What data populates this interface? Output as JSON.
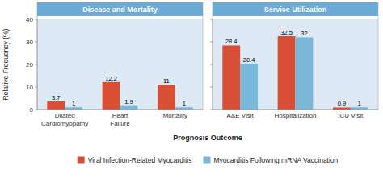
{
  "chart_data": [
    {
      "type": "bar",
      "title": "Disease and Mortality",
      "x_label": "Prognosis Outcome",
      "y_label": "Relative Frequency (%)",
      "categories": [
        "Dilated\nCardiomyopathy",
        "Heart\nFailure",
        "Mortality"
      ],
      "series": [
        {
          "name": "Viral Infection-Related Myocarditis",
          "color": "#d94f35",
          "values": [
            3.7,
            12.2,
            11
          ]
        },
        {
          "name": "Myocarditis Following mRNA Vaccination",
          "color": "#7ab8d9",
          "values": [
            1,
            1.9,
            1
          ]
        }
      ],
      "ylim": [
        0,
        40
      ],
      "yticks": [
        0,
        10,
        20,
        30,
        40
      ],
      "grid": false,
      "data_labels": true,
      "legend": "bottom"
    },
    {
      "type": "bar",
      "title": "Service Utilization",
      "categories": [
        "A&E Visit",
        "Hospitalization",
        "ICU Visit"
      ],
      "series": [
        {
          "color": "#d94f35",
          "values": [
            28.4,
            32.5,
            0.9
          ]
        },
        {
          "color": "#7ab8d9",
          "values": [
            20.4,
            32,
            1
          ]
        }
      ],
      "ylim": [
        0,
        40
      ],
      "yticks": [
        0,
        10,
        20,
        30,
        40
      ],
      "grid": false,
      "data_labels": true,
      "tick_labels": "x"
    }
  ]
}
